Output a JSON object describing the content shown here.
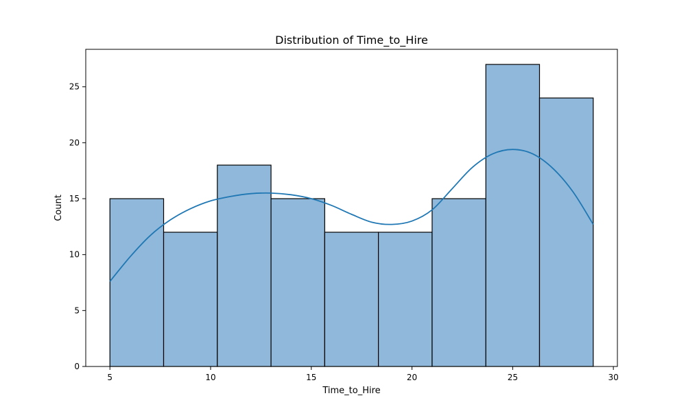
{
  "chart_data": {
    "type": "bar",
    "title": "Distribution of Time_to_Hire",
    "xlabel": "Time_to_Hire",
    "ylabel": "Count",
    "xlim": [
      3.8,
      30.2
    ],
    "ylim": [
      0,
      28.35
    ],
    "xticks": [
      5,
      10,
      15,
      20,
      25,
      30
    ],
    "yticks": [
      0,
      5,
      10,
      15,
      20,
      25
    ],
    "grid": false,
    "bins": [
      {
        "start": 5.0,
        "end": 7.667,
        "count": 15
      },
      {
        "start": 7.667,
        "end": 10.333,
        "count": 12
      },
      {
        "start": 10.333,
        "end": 13.0,
        "count": 18
      },
      {
        "start": 13.0,
        "end": 15.667,
        "count": 15
      },
      {
        "start": 15.667,
        "end": 18.333,
        "count": 12
      },
      {
        "start": 18.333,
        "end": 21.0,
        "count": 12
      },
      {
        "start": 21.0,
        "end": 23.667,
        "count": 15
      },
      {
        "start": 23.667,
        "end": 26.333,
        "count": 27
      },
      {
        "start": 26.333,
        "end": 29.0,
        "count": 24
      }
    ],
    "kde": {
      "x": [
        5,
        6,
        7,
        8,
        9,
        10,
        11,
        12,
        13,
        14,
        15,
        16,
        17,
        18,
        19,
        20,
        21,
        22,
        23,
        24,
        25,
        26,
        27,
        28,
        29
      ],
      "y": [
        7.6,
        9.8,
        11.7,
        13.1,
        14.1,
        14.8,
        15.2,
        15.45,
        15.5,
        15.35,
        15.0,
        14.4,
        13.6,
        12.9,
        12.7,
        13.0,
        14.0,
        15.9,
        17.8,
        19.0,
        19.4,
        19.0,
        17.7,
        15.6,
        12.7
      ]
    },
    "colors": {
      "bar_fill": "#8fb8da",
      "bar_edge": "#000000",
      "kde_line": "#1f77b4",
      "axis": "#000000"
    }
  }
}
